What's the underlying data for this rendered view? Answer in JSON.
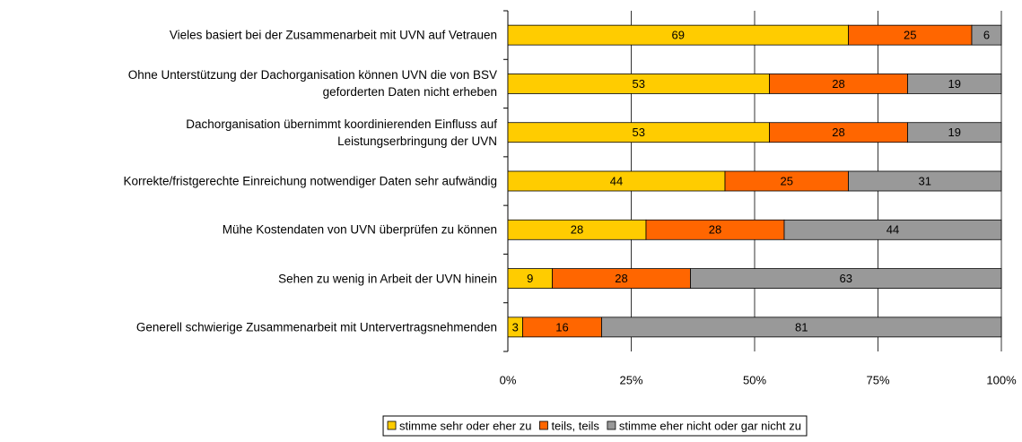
{
  "chart_data": {
    "type": "stacked-bar-horizontal",
    "categories": [
      "Vieles basiert bei der Zusammenarbeit mit UVN auf Vetrauen",
      "Ohne Unterstützung der Dachorganisation können UVN die von BSV\ngeforderten Daten nicht erheben",
      "Dachorganisation übernimmt koordinierenden Einfluss auf\nLeistungserbringung der UVN",
      "Korrekte/fristgerechte Einreichung notwendiger Daten sehr aufwändig",
      "Mühe Kostendaten von UVN überprüfen zu können",
      "Sehen zu wenig in Arbeit der UVN hinein",
      "Generell schwierige Zusammenarbeit mit Untervertragsnehmenden"
    ],
    "series": [
      {
        "name": "stimme sehr oder eher zu",
        "color": "#ffcc00",
        "values": [
          69,
          53,
          53,
          44,
          28,
          9,
          3
        ]
      },
      {
        "name": "teils, teils",
        "color": "#ff6600",
        "values": [
          25,
          28,
          28,
          25,
          28,
          28,
          16
        ]
      },
      {
        "name": "stimme eher nicht oder gar nicht zu",
        "color": "#999999",
        "values": [
          6,
          19,
          19,
          31,
          44,
          63,
          81
        ]
      }
    ],
    "xlim": [
      0,
      100
    ],
    "xticks": [
      {
        "value": 0,
        "label": "0%"
      },
      {
        "value": 25,
        "label": "25%"
      },
      {
        "value": 50,
        "label": "50%"
      },
      {
        "value": 75,
        "label": "75%"
      },
      {
        "value": 100,
        "label": "100%"
      }
    ],
    "grid": true,
    "legend": "bottom"
  }
}
